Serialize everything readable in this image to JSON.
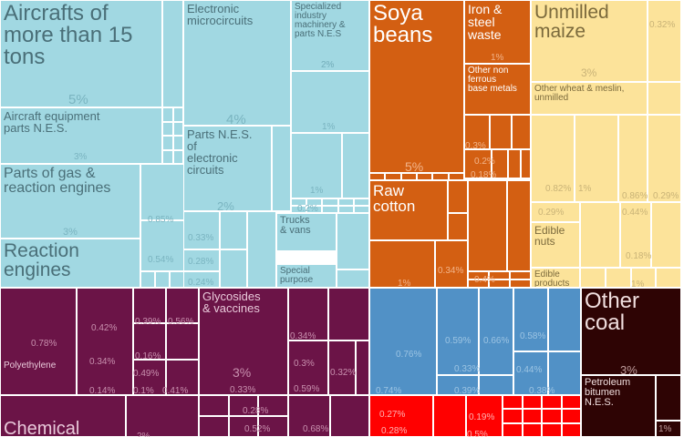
{
  "chart_data": {
    "type": "treemap",
    "title": "",
    "colors": {
      "machinery": "#a1d8e2",
      "vegetable": "#d35f12",
      "foodstuffs": "#fce39a",
      "chemicals": "#6b1447",
      "plastics_minerals": "#5191c6",
      "metals": "#ff0000",
      "mineral_products": "#2e0404"
    },
    "tiles": [
      {
        "id": "aircraft-15t",
        "label": "Aircrafts of\nmore than 15\ntons",
        "value_label": "5%",
        "value": 5,
        "group": "machinery"
      },
      {
        "id": "electronic-microcircuits",
        "label": "Electronic\nmicrocircuits",
        "value_label": "4%",
        "value": 4,
        "group": "machinery"
      },
      {
        "id": "specialized-machinery-parts",
        "label": "Specialized\nindustry\nmachinery &\nparts N.E.S",
        "value_label": "2%",
        "value": 2,
        "group": "machinery"
      },
      {
        "id": "aircraft-equipment-parts",
        "label": "Aircraft equipment\nparts N.E.S.",
        "value_label": "3%",
        "value": 3,
        "group": "machinery"
      },
      {
        "id": "parts-electronic-circuits",
        "label": "Parts N.E.S.\nof\nelectronic\ncircuits",
        "value_label": "2%",
        "value": 2,
        "group": "machinery"
      },
      {
        "id": "parts-gas-reaction-engines",
        "label": "Parts of gas &\nreaction engines",
        "value_label": "3%",
        "value": 3,
        "group": "machinery"
      },
      {
        "id": "reaction-engines",
        "label": "Reaction\nengines",
        "value_label": "2%",
        "value": 2,
        "group": "machinery"
      },
      {
        "id": "trucks-vans",
        "label": "Trucks\n& vans",
        "value_label": "0.87%",
        "value": 0.87,
        "group": "machinery"
      },
      {
        "id": "special-purpose",
        "label": "Special\npurpose",
        "value_label": "0.52%",
        "value": 0.52,
        "group": "machinery"
      },
      {
        "id": "soya-beans",
        "label": "Soya\nbeans",
        "value_label": "5%",
        "value": 5,
        "group": "vegetable"
      },
      {
        "id": "iron-steel-waste",
        "label": "Iron &\nsteel\nwaste",
        "value_label": "1%",
        "value": 1,
        "group": "vegetable"
      },
      {
        "id": "nonferrous-waste",
        "label": "Other non\nferrous\nbase metals",
        "value_label": "1%",
        "value": 1,
        "group": "vegetable"
      },
      {
        "id": "raw-cotton",
        "label": "Raw\ncotton",
        "value_label": "1%",
        "value": 1,
        "group": "vegetable"
      },
      {
        "id": "unmilled-maize",
        "label": "Unmilled\nmaize",
        "value_label": "3%",
        "value": 3,
        "group": "foodstuffs"
      },
      {
        "id": "other-wheat-meslin",
        "label": "Other wheat & meslin,\nunmilled",
        "value_label": "1%",
        "value": 1,
        "group": "foodstuffs"
      },
      {
        "id": "edible-nuts",
        "label": "Edible\nnuts",
        "value_label": "0.79%",
        "value": 0.79,
        "group": "foodstuffs"
      },
      {
        "id": "edible-products",
        "label": "Edible\nproducts",
        "value_label": "0.27%",
        "value": 0.27,
        "group": "foodstuffs"
      },
      {
        "id": "polyethylene",
        "label": "Polyethylene",
        "value_label": "1%",
        "value": 1,
        "group": "chemicals"
      },
      {
        "id": "glycosides-vaccines",
        "label": "Glycosides\n& vaccines",
        "value_label": "3%",
        "value": 3,
        "group": "chemicals"
      },
      {
        "id": "chemical",
        "label": "Chemical",
        "value_label": "",
        "value": null,
        "group": "chemicals"
      },
      {
        "id": "other-coal",
        "label": "Other\ncoal",
        "value_label": "3%",
        "value": 3,
        "group": "mineral_products"
      },
      {
        "id": "petroleum-bitumen",
        "label": "Petroleum\nbitumen\nN.E.S.",
        "value_label": "1%",
        "value": 1,
        "group": "mineral_products"
      }
    ],
    "small_value_labels": [
      "0.32%",
      "2%",
      "1%",
      "1%",
      "0.2%",
      "0.85%",
      "0.54%",
      "0.33%",
      "0.28%",
      "0.24%",
      "1%",
      "0.34%",
      "0.4%",
      "0.3%",
      "0.2%",
      "0.18%",
      "1%",
      "0.82%",
      "1%",
      "0.86%",
      "0.29%",
      "0.29%",
      "0.44%",
      "0.18%",
      "1%",
      "0.78%",
      "0.42%",
      "0.39%",
      "0.56%",
      "0.34%",
      "0.16%",
      "0.49%",
      "0.14%",
      "0.1%",
      "0.41%",
      "0.33%",
      "0.28%",
      "0.52%",
      "0.34%",
      "0.3%",
      "0.32%",
      "0.59%",
      "0.68%",
      "2%",
      "0.76%",
      "0.74%",
      "0.59%",
      "0.66%",
      "0.58%",
      "0.33%",
      "0.44%",
      "0.39%",
      "0.38%",
      "0.27%",
      "0.28%",
      "0.19%",
      "0.5%",
      "1%"
    ]
  }
}
